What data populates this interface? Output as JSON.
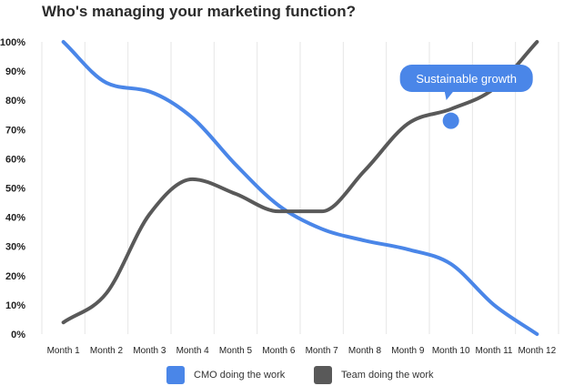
{
  "chart_data": {
    "type": "line",
    "title": "Who's managing your marketing function?",
    "xlabel": "",
    "ylabel": "",
    "categories": [
      "Month 1",
      "Month 2",
      "Month 3",
      "Month 4",
      "Month 5",
      "Month 6",
      "Month 7",
      "Month 8",
      "Month 9",
      "Month 10",
      "Month 11",
      "Month 12"
    ],
    "y_ticks": [
      "0%",
      "10%",
      "20%",
      "30%",
      "40%",
      "50%",
      "60%",
      "70%",
      "80%",
      "90%",
      "100%"
    ],
    "ylim": [
      0,
      100
    ],
    "grid": "vertical",
    "legend_position": "bottom",
    "series": [
      {
        "name": "CMO doing the work",
        "color": "#4a86e8",
        "values": [
          100,
          86,
          83,
          74,
          58,
          44,
          36,
          32,
          29,
          24,
          10,
          0
        ]
      },
      {
        "name": "Team doing the work",
        "color": "#595959",
        "values": [
          4,
          14,
          41,
          53,
          48,
          42,
          42,
          56,
          72,
          77,
          84,
          100
        ]
      }
    ],
    "annotation": {
      "text": "Sustainable growth",
      "x_index": 9,
      "y": 73,
      "color": "#4a86e8"
    }
  }
}
